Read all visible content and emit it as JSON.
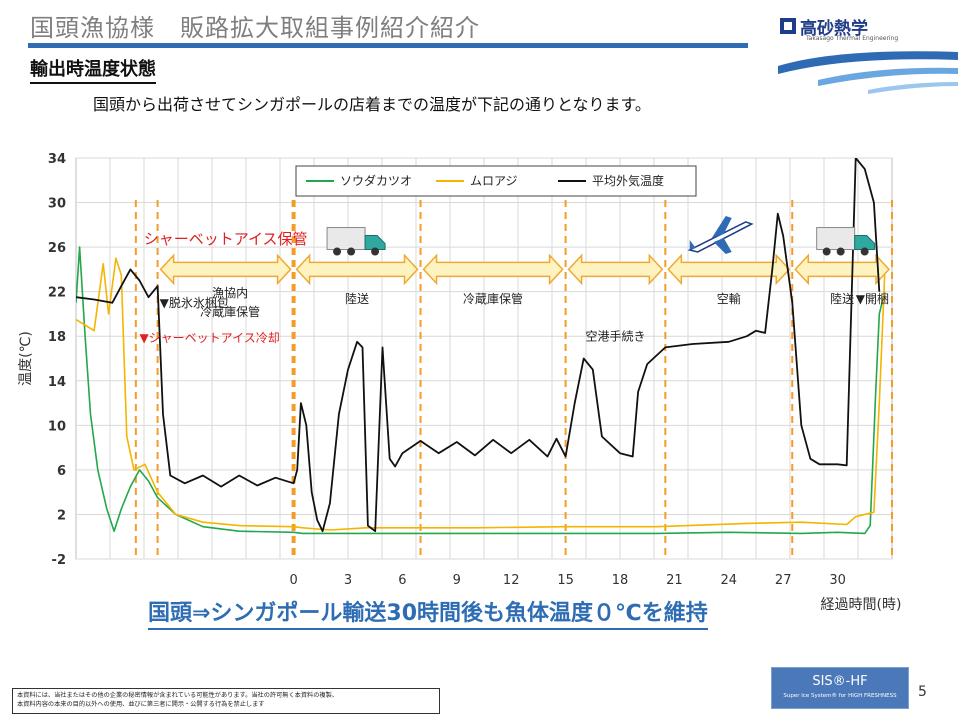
{
  "slide": {
    "title": "国頭漁協様　販路拡大取組事例紹介紹介",
    "section_heading": "輸出時温度状態",
    "intro": "国頭から出荷させてシンガポールの店着までの温度が下記の通りとなります。",
    "conclusion": "国頭⇒シンガポール輸送30時間後も魚体温度０℃を維持",
    "page_number": "5"
  },
  "logo": {
    "name": "高砂熱学",
    "tagline": "Takasago Thermal Engineering"
  },
  "brand": {
    "name": "SIS®-HF",
    "tagline": "Super Ice System® for HIGH FRESHNESS"
  },
  "disclaimer": {
    "line1": "本資料には、当社またはその他の企業の秘密情報が含まれている可能性があります。当社の許可無く本資料の複製、",
    "line2": "本資料内容の本来の目的以外への使用、並びに第三者に開示・公開する行為を禁止します"
  },
  "colors": {
    "title_rule": "#2e6db4",
    "sodagatsuo": "#22a84a",
    "muroaji": "#f5b400",
    "outdoor": "#111111",
    "event_line": "#f39c28",
    "arrow_fill": "#fdf3c0",
    "arrow_stroke": "#f0a830",
    "annotation_red": "#e02020"
  },
  "chart_data": {
    "type": "line",
    "ylabel": "温度(℃)",
    "xlabel": "経過時間(時)",
    "ylim": [
      -2,
      34
    ],
    "xlim": [
      -12,
      33
    ],
    "y_ticks": [
      "-2",
      "2",
      "6",
      "10",
      "14",
      "18",
      "22",
      "26",
      "30",
      "34"
    ],
    "x_ticks": [
      "0",
      "3",
      "6",
      "9",
      "12",
      "15",
      "18",
      "21",
      "24",
      "27",
      "30"
    ],
    "grid": true,
    "legend_position": "top-center",
    "series": [
      {
        "name": "ソウダカツオ",
        "color": "#22a84a",
        "points": [
          [
            -12,
            21
          ],
          [
            -11.8,
            26
          ],
          [
            -11.5,
            18
          ],
          [
            -11.2,
            11
          ],
          [
            -10.8,
            6
          ],
          [
            -10.3,
            2.5
          ],
          [
            -9.9,
            0.5
          ],
          [
            -9.5,
            2.5
          ],
          [
            -9,
            4.5
          ],
          [
            -8.5,
            6
          ],
          [
            -8,
            5
          ],
          [
            -7.5,
            3.5
          ],
          [
            -6.5,
            2
          ],
          [
            -5,
            0.9
          ],
          [
            -3,
            0.5
          ],
          [
            0,
            0.4
          ],
          [
            0.5,
            0.3
          ],
          [
            5,
            0.3
          ],
          [
            10,
            0.3
          ],
          [
            15,
            0.3
          ],
          [
            20,
            0.3
          ],
          [
            24,
            0.4
          ],
          [
            28,
            0.3
          ],
          [
            30,
            0.4
          ],
          [
            31.5,
            0.3
          ],
          [
            31.8,
            1
          ],
          [
            32.1,
            13
          ],
          [
            32.3,
            20
          ],
          [
            32.6,
            22
          ]
        ]
      },
      {
        "name": "ムロアジ",
        "color": "#f5b400",
        "points": [
          [
            -12,
            19.5
          ],
          [
            -11.5,
            19
          ],
          [
            -11,
            18.5
          ],
          [
            -10.5,
            24.5
          ],
          [
            -10.2,
            20
          ],
          [
            -9.8,
            25
          ],
          [
            -9.5,
            23.5
          ],
          [
            -9.2,
            9
          ],
          [
            -8.8,
            6
          ],
          [
            -8.2,
            6.5
          ],
          [
            -7.5,
            4
          ],
          [
            -6.5,
            2
          ],
          [
            -5,
            1.3
          ],
          [
            -3,
            1
          ],
          [
            0,
            0.9
          ],
          [
            0.5,
            0.8
          ],
          [
            2,
            0.6
          ],
          [
            4,
            0.8
          ],
          [
            10,
            0.8
          ],
          [
            15,
            0.9
          ],
          [
            20,
            0.9
          ],
          [
            25,
            1.2
          ],
          [
            28,
            1.3
          ],
          [
            30.5,
            1.1
          ],
          [
            31,
            1.8
          ],
          [
            32,
            2.2
          ],
          [
            32.3,
            12
          ],
          [
            32.6,
            23.5
          ]
        ]
      },
      {
        "name": "平均外気温度",
        "color": "#111111",
        "points": [
          [
            -12,
            21.5
          ],
          [
            -11,
            21.3
          ],
          [
            -10,
            21
          ],
          [
            -9.5,
            22.5
          ],
          [
            -9,
            24
          ],
          [
            -8.5,
            23
          ],
          [
            -8,
            21.5
          ],
          [
            -7.5,
            22.5
          ],
          [
            -7.2,
            11
          ],
          [
            -6.8,
            5.5
          ],
          [
            -6,
            4.8
          ],
          [
            -5,
            5.5
          ],
          [
            -4,
            4.5
          ],
          [
            -3,
            5.5
          ],
          [
            -2,
            4.6
          ],
          [
            -1,
            5.3
          ],
          [
            0,
            4.8
          ],
          [
            0.2,
            6
          ],
          [
            0.4,
            12
          ],
          [
            0.7,
            10
          ],
          [
            1,
            4
          ],
          [
            1.3,
            1.5
          ],
          [
            1.6,
            0.5
          ],
          [
            2,
            3
          ],
          [
            2.5,
            11
          ],
          [
            3,
            15
          ],
          [
            3.5,
            17.5
          ],
          [
            3.8,
            17
          ],
          [
            4.1,
            1
          ],
          [
            4.5,
            0.5
          ],
          [
            4.9,
            17
          ],
          [
            5.3,
            7
          ],
          [
            5.6,
            6.3
          ],
          [
            6,
            7.5
          ],
          [
            7,
            8.6
          ],
          [
            8,
            7.5
          ],
          [
            9,
            8.5
          ],
          [
            10,
            7.3
          ],
          [
            11,
            8.7
          ],
          [
            12,
            7.5
          ],
          [
            13,
            8.7
          ],
          [
            14,
            7.2
          ],
          [
            14.5,
            8.8
          ],
          [
            15,
            7.2
          ],
          [
            15.5,
            12
          ],
          [
            16,
            16
          ],
          [
            16.5,
            15
          ],
          [
            17,
            9
          ],
          [
            18,
            7.5
          ],
          [
            18.7,
            7.2
          ],
          [
            19,
            13
          ],
          [
            19.5,
            15.5
          ],
          [
            20.5,
            17
          ],
          [
            22,
            17.3
          ],
          [
            24,
            17.5
          ],
          [
            25,
            18
          ],
          [
            25.5,
            18.5
          ],
          [
            26,
            18.3
          ],
          [
            26.4,
            24
          ],
          [
            26.7,
            29
          ],
          [
            27,
            27
          ],
          [
            27.5,
            21
          ],
          [
            28,
            10
          ],
          [
            28.5,
            7
          ],
          [
            29,
            6.5
          ],
          [
            30,
            6.5
          ],
          [
            30.5,
            6.4
          ],
          [
            31,
            34
          ],
          [
            31.5,
            33
          ],
          [
            32,
            30
          ],
          [
            32.3,
            22
          ]
        ]
      }
    ],
    "event_markers": [
      {
        "x": -7.5,
        "label": "▼脱氷氷梱包"
      },
      {
        "x": 0,
        "label": ""
      },
      {
        "x": 7,
        "label": ""
      },
      {
        "x": 15,
        "label": ""
      },
      {
        "x": 20.5,
        "label": ""
      },
      {
        "x": 27.5,
        "label": ""
      },
      {
        "x": 33,
        "label": ""
      }
    ],
    "period_arrows": [
      {
        "from": -7.5,
        "to": 0,
        "label": "シャーベットアイス保管",
        "label_color": "#e02020"
      },
      {
        "from": 0,
        "to": 7,
        "label": "陸送"
      },
      {
        "from": 7,
        "to": 15,
        "label": "冷蔵庫保管"
      },
      {
        "from": 15,
        "to": 20.5,
        "label": "空港手続き"
      },
      {
        "from": 20.5,
        "to": 27.5,
        "label": "空輸"
      },
      {
        "from": 27.5,
        "to": 33,
        "label": "陸送"
      }
    ],
    "annotations": [
      {
        "x": -8.5,
        "y": 17.5,
        "text": "▼シャーベットアイス冷却",
        "color": "#e02020"
      },
      {
        "x": -3.5,
        "y": 21.5,
        "text": "漁協内",
        "color": "#222222"
      },
      {
        "x": -3.5,
        "y": 19.8,
        "text": "冷蔵庫保管",
        "color": "#222222"
      },
      {
        "x": 31,
        "y": 21,
        "text": "▼開梱",
        "color": "#222222"
      }
    ],
    "icons": [
      {
        "name": "truck-icon",
        "x": 3.5,
        "y": 26.5
      },
      {
        "name": "airplane-icon",
        "x": 23.5,
        "y": 27
      },
      {
        "name": "truck-icon",
        "x": 30.5,
        "y": 26.5
      }
    ]
  }
}
